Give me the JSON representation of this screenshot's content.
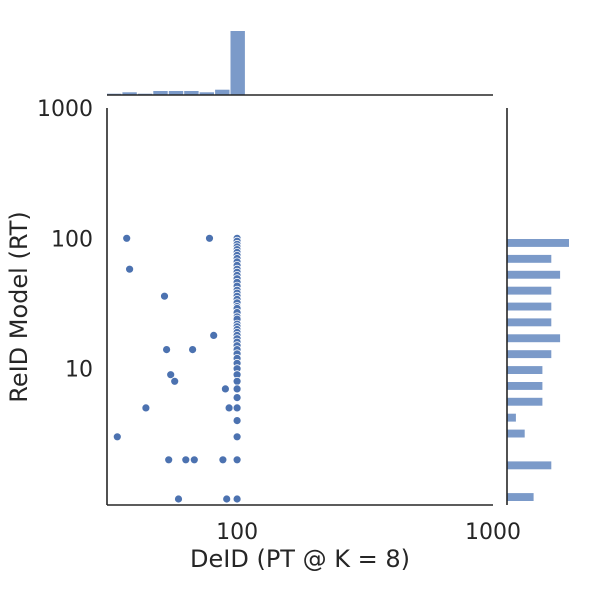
{
  "chart_data": {
    "type": "scatter",
    "title": "",
    "xlabel": "DeID (PT @ K = 8)",
    "ylabel": "ReID Model (RT)",
    "x_scale": "log",
    "y_scale": "log",
    "xlim": [
      31,
      1000
    ],
    "ylim": [
      0.9,
      1000
    ],
    "x_ticks": [
      {
        "value": 100,
        "label": "100"
      },
      {
        "value": 1000,
        "label": "1000"
      }
    ],
    "y_ticks": [
      {
        "value": 10,
        "label": "10"
      },
      {
        "value": 100,
        "label": "100"
      },
      {
        "value": 1000,
        "label": "1000"
      }
    ],
    "grid": false,
    "marginal_histograms": true,
    "color": "#4c72b0",
    "points": [
      [
        37,
        100
      ],
      [
        38,
        58
      ],
      [
        34,
        3
      ],
      [
        44,
        5
      ],
      [
        52,
        36
      ],
      [
        53,
        14
      ],
      [
        54,
        2
      ],
      [
        55,
        9
      ],
      [
        57,
        8
      ],
      [
        59,
        1
      ],
      [
        63,
        2
      ],
      [
        67,
        14
      ],
      [
        68,
        2
      ],
      [
        78,
        100
      ],
      [
        81,
        18
      ],
      [
        88,
        2
      ],
      [
        90,
        7
      ],
      [
        91,
        1
      ],
      [
        93,
        5
      ],
      [
        100,
        100
      ],
      [
        100,
        95
      ],
      [
        100,
        90
      ],
      [
        100,
        86
      ],
      [
        100,
        82
      ],
      [
        100,
        78
      ],
      [
        100,
        74
      ],
      [
        100,
        70
      ],
      [
        100,
        66
      ],
      [
        100,
        62
      ],
      [
        100,
        58
      ],
      [
        100,
        55
      ],
      [
        100,
        52
      ],
      [
        100,
        49
      ],
      [
        100,
        46
      ],
      [
        100,
        43
      ],
      [
        100,
        40
      ],
      [
        100,
        38
      ],
      [
        100,
        36
      ],
      [
        100,
        34
      ],
      [
        100,
        32
      ],
      [
        100,
        30
      ],
      [
        100,
        29
      ],
      [
        100,
        27
      ],
      [
        100,
        25
      ],
      [
        100,
        24
      ],
      [
        100,
        22
      ],
      [
        100,
        21
      ],
      [
        100,
        20
      ],
      [
        100,
        19
      ],
      [
        100,
        18
      ],
      [
        100,
        17
      ],
      [
        100,
        16
      ],
      [
        100,
        15
      ],
      [
        100,
        14
      ],
      [
        100,
        13
      ],
      [
        100,
        12
      ],
      [
        100,
        11
      ],
      [
        100,
        10
      ],
      [
        100,
        9
      ],
      [
        100,
        8
      ],
      [
        100,
        7
      ],
      [
        100,
        6
      ],
      [
        100,
        5
      ],
      [
        100,
        4
      ],
      [
        100,
        3
      ],
      [
        100,
        2
      ],
      [
        100,
        1
      ]
    ]
  }
}
